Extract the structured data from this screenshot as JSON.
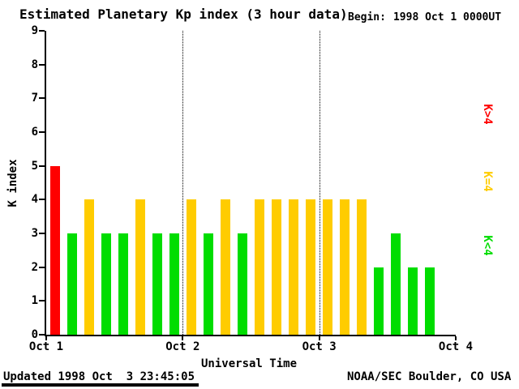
{
  "chart_data": {
    "type": "bar",
    "title": "Estimated Planetary Kp index (3 hour data)",
    "begin_label": "Begin:",
    "begin_value": "1998 Oct 1 0000UT",
    "ylabel": "K index",
    "xlabel": "Universal Time",
    "ylim": [
      0,
      9
    ],
    "yticks": [
      0,
      1,
      2,
      3,
      4,
      5,
      6,
      7,
      8,
      9
    ],
    "xticks": [
      "Oct 1",
      "Oct 2",
      "Oct 3",
      "Oct 4"
    ],
    "hours_per_bar": 3,
    "bars_per_day": 8,
    "days_shown": 3,
    "values": [
      5,
      3,
      4,
      3,
      3,
      4,
      3,
      3,
      4,
      3,
      4,
      3,
      4,
      4,
      4,
      4,
      4,
      4,
      4,
      2,
      3,
      2,
      2
    ],
    "threshold": 4,
    "colors": {
      "k_above_4": "#ff0000",
      "k_equal_4": "#ffcc00",
      "k_below_4": "#00dd00"
    },
    "legend": [
      {
        "label": "K>4",
        "color": "#ff0000"
      },
      {
        "label": "K=4",
        "color": "#ffcc00"
      },
      {
        "label": "K<4",
        "color": "#00dd00"
      }
    ],
    "grid": "dotted vertical lines at day boundaries",
    "footer_left": "Updated 1998 Oct  3 23:45:05",
    "footer_right": "NOAA/SEC Boulder, CO USA"
  }
}
